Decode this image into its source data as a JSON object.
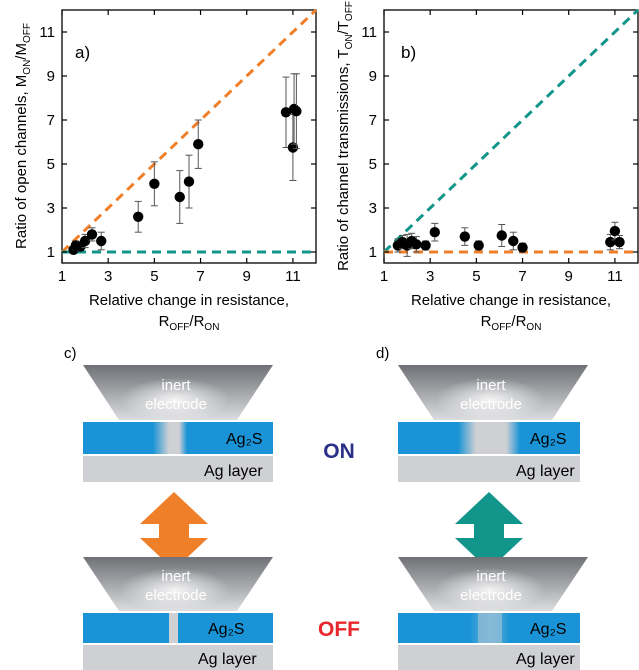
{
  "colors": {
    "orange": "#f07f2a",
    "teal": "#12958a",
    "blue": "#1a94d6",
    "on_text": "#2b3088",
    "off_text": "#e8272d",
    "ag_layer": "#cfd0d4",
    "electrode_dark": "#6f7176",
    "electrode_light": "#d9dadc"
  },
  "panels": {
    "a": {
      "label": "a)"
    },
    "b": {
      "label": "b)"
    },
    "c": {
      "label": "c)"
    },
    "d": {
      "label": "d)"
    }
  },
  "schematic": {
    "electrode_line1": "inert",
    "electrode_line2": "electrode",
    "ag2s": "Ag₂S",
    "ag_layer": "Ag layer",
    "on": "ON",
    "off": "OFF"
  },
  "chart_data": [
    {
      "panel": "a)",
      "type": "scatter",
      "ylabel": "Ratio of open channels, M_ON/M_OFF",
      "xlabel": "Relative change in resistance, R_OFF/R_ON",
      "xlim": [
        1,
        12
      ],
      "ylim": [
        0.5,
        12
      ],
      "xticks": [
        1,
        3,
        5,
        7,
        9,
        11
      ],
      "yticks": [
        1,
        3,
        5,
        7,
        9,
        11
      ],
      "series": [
        {
          "points": [
            {
              "x": 1.5,
              "y": 1.1,
              "err": 0.15
            },
            {
              "x": 1.6,
              "y": 1.3,
              "err": 0.2
            },
            {
              "x": 1.8,
              "y": 1.25,
              "err": 0.2
            },
            {
              "x": 2.0,
              "y": 1.5,
              "err": 0.3
            },
            {
              "x": 2.3,
              "y": 1.8,
              "err": 0.3
            },
            {
              "x": 2.7,
              "y": 1.5,
              "err": 0.4
            },
            {
              "x": 4.3,
              "y": 2.6,
              "err": 0.7
            },
            {
              "x": 5.0,
              "y": 4.1,
              "err": 1.0
            },
            {
              "x": 6.1,
              "y": 3.5,
              "err": 1.2
            },
            {
              "x": 6.5,
              "y": 4.2,
              "err": 1.2
            },
            {
              "x": 6.9,
              "y": 5.9,
              "err": 1.1
            },
            {
              "x": 10.7,
              "y": 7.35,
              "err": 1.6
            },
            {
              "x": 11.0,
              "y": 5.75,
              "err": 1.5
            },
            {
              "x": 11.05,
              "y": 7.5,
              "err": 1.6
            },
            {
              "x": 11.15,
              "y": 7.4,
              "err": 1.7
            }
          ]
        }
      ],
      "lines": [
        {
          "color": "orange",
          "style": "dashed",
          "from": [
            1,
            1
          ],
          "to": [
            12,
            12
          ]
        },
        {
          "color": "teal",
          "style": "dashed",
          "from": [
            1,
            1
          ],
          "to": [
            12,
            1
          ]
        }
      ]
    },
    {
      "panel": "b)",
      "type": "scatter",
      "ylabel": "Ratio of channel transmissions, T_ON/T_OFF",
      "xlabel": "Relative change in resistance, R_OFF/R_ON",
      "xlim": [
        1,
        12
      ],
      "ylim": [
        0.5,
        12
      ],
      "xticks": [
        1,
        3,
        5,
        7,
        9,
        11
      ],
      "yticks": [
        1,
        3,
        5,
        7,
        9,
        11
      ],
      "series": [
        {
          "points": [
            {
              "x": 1.6,
              "y": 1.3,
              "err": 0.3
            },
            {
              "x": 1.8,
              "y": 1.45,
              "err": 0.3
            },
            {
              "x": 2.0,
              "y": 1.3,
              "err": 0.5
            },
            {
              "x": 2.2,
              "y": 1.5,
              "err": 0.35
            },
            {
              "x": 2.4,
              "y": 1.35,
              "err": 0.35
            },
            {
              "x": 2.8,
              "y": 1.3,
              "err": 0.2
            },
            {
              "x": 3.2,
              "y": 1.9,
              "err": 0.4
            },
            {
              "x": 4.5,
              "y": 1.7,
              "err": 0.4
            },
            {
              "x": 5.1,
              "y": 1.3,
              "err": 0.2
            },
            {
              "x": 6.1,
              "y": 1.75,
              "err": 0.5
            },
            {
              "x": 6.6,
              "y": 1.5,
              "err": 0.4
            },
            {
              "x": 7.0,
              "y": 1.2,
              "err": 0.2
            },
            {
              "x": 10.8,
              "y": 1.45,
              "err": 0.35
            },
            {
              "x": 11.0,
              "y": 1.95,
              "err": 0.4
            },
            {
              "x": 11.2,
              "y": 1.45,
              "err": 0.3
            }
          ]
        }
      ],
      "lines": [
        {
          "color": "teal",
          "style": "dashed",
          "from": [
            1,
            1
          ],
          "to": [
            12,
            12
          ]
        },
        {
          "color": "orange",
          "style": "dashed",
          "from": [
            1,
            1
          ],
          "to": [
            12,
            1
          ]
        }
      ]
    }
  ]
}
